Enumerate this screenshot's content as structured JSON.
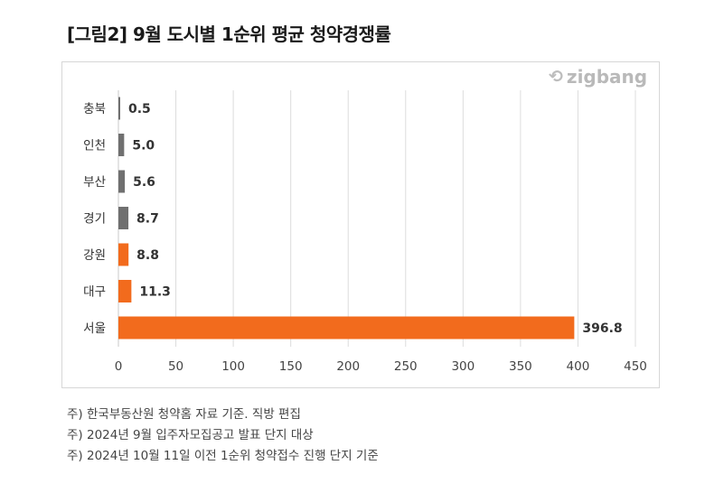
{
  "title": "[그림2] 9월 도시별 1순위 평균 청약경쟁률",
  "logo_text": "zigbang",
  "colors": {
    "gray": "#707070",
    "orange": "#f26b1d",
    "grid": "#dcdcdc",
    "axis": "#c8c8c8"
  },
  "chart_data": {
    "type": "bar",
    "orientation": "horizontal",
    "categories": [
      "충북",
      "인천",
      "부산",
      "경기",
      "강원",
      "대구",
      "서울"
    ],
    "values": [
      0.5,
      5.0,
      5.6,
      8.7,
      8.8,
      11.3,
      396.8
    ],
    "value_labels": [
      "0.5",
      "5.0",
      "5.6",
      "8.7",
      "8.8",
      "11.3",
      "396.8"
    ],
    "bar_colors": [
      "#707070",
      "#707070",
      "#707070",
      "#707070",
      "#f26b1d",
      "#f26b1d",
      "#f26b1d"
    ],
    "xlim": [
      0,
      450
    ],
    "x_ticks": [
      0,
      50,
      100,
      150,
      200,
      250,
      300,
      350,
      400,
      450
    ],
    "grid": true,
    "legend": "none"
  },
  "notes": [
    "주) 한국부동산원 청약홈 자료 기준. 직방 편집",
    "주) 2024년 9월 입주자모집공고 발표 단지 대상",
    "주) 2024년 10월 11일 이전 1순위 청약접수 진행 단지 기준"
  ]
}
